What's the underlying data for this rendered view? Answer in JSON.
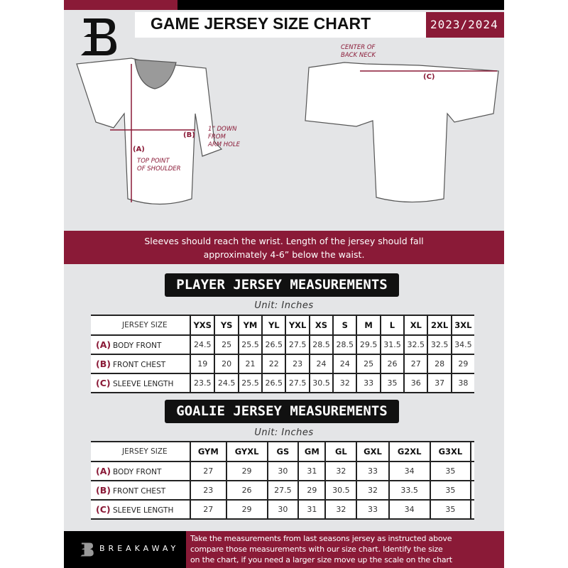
{
  "header": {
    "title": "GAME JERSEY SIZE CHART",
    "season": "2023/2024"
  },
  "diagram": {
    "front_labels": {
      "a": "(A)",
      "a_note": "TOP POINT OF SHOULDER",
      "b": "(B)",
      "b_note_1": "1” DOWN",
      "b_note_2": "FROM",
      "b_note_3": "ARM HOLE",
      "a_note_1": "TOP POINT",
      "a_note_2": "OF SHOULDER"
    },
    "back_labels": {
      "c": "(C)",
      "c_note_1": "CENTER OF",
      "c_note_2": "BACK NECK"
    }
  },
  "instructions": {
    "line1": "Sleeves should reach the wrist. Length of the jersey should fall",
    "line2": "approximately 4-6” below the waist."
  },
  "player": {
    "title": "PLAYER JERSEY MEASUREMENTS",
    "unit": "Unit: Inches",
    "header_label": "JERSEY SIZE",
    "sizes": [
      "YXS",
      "YS",
      "YM",
      "YL",
      "YXL",
      "XS",
      "S",
      "M",
      "L",
      "XL",
      "2XL",
      "3XL"
    ],
    "rows": [
      {
        "code": "(A)",
        "label": "BODY FRONT",
        "values": [
          "24.5",
          "25",
          "25.5",
          "26.5",
          "27.5",
          "28.5",
          "28.5",
          "29.5",
          "31.5",
          "32.5",
          "32.5",
          "34.5"
        ]
      },
      {
        "code": "(B)",
        "label": "FRONT CHEST",
        "values": [
          "19",
          "20",
          "21",
          "22",
          "23",
          "24",
          "24",
          "25",
          "26",
          "27",
          "28",
          "29"
        ]
      },
      {
        "code": "(C)",
        "label": "SLEEVE LENGTH",
        "values": [
          "23.5",
          "24.5",
          "25.5",
          "26.5",
          "27.5",
          "30.5",
          "32",
          "33",
          "35",
          "36",
          "37",
          "38"
        ]
      }
    ]
  },
  "goalie": {
    "title": "GOALIE JERSEY MEASUREMENTS",
    "unit": "Unit: Inches",
    "header_label": "JERSEY SIZE",
    "sizes": [
      "GYM",
      "GYXL",
      "GS",
      "GM",
      "GL",
      "GXL",
      "G2XL",
      "G3XL",
      ""
    ],
    "rows": [
      {
        "code": "(A)",
        "label": "BODY FRONT",
        "values": [
          "27",
          "29",
          "30",
          "31",
          "32",
          "33",
          "34",
          "35",
          ""
        ]
      },
      {
        "code": "(B)",
        "label": "FRONT CHEST",
        "values": [
          "23",
          "26",
          "27.5",
          "29",
          "30.5",
          "32",
          "33.5",
          "35",
          ""
        ]
      },
      {
        "code": "(C)",
        "label": "SLEEVE LENGTH",
        "values": [
          "27",
          "29",
          "30",
          "31",
          "32",
          "33",
          "34",
          "35",
          ""
        ]
      }
    ]
  },
  "footer": {
    "brand": "BREAKAWAY",
    "line1": "Take the measurements from last seasons jersey as instructed above",
    "line2": "compare those measurements  with our size chart. Identify the size",
    "line3": "on the chart, if you need a larger size move up the scale on the chart"
  },
  "colors": {
    "accent": "#8a1a37",
    "background": "#e4e5e7",
    "dark": "#000000"
  }
}
